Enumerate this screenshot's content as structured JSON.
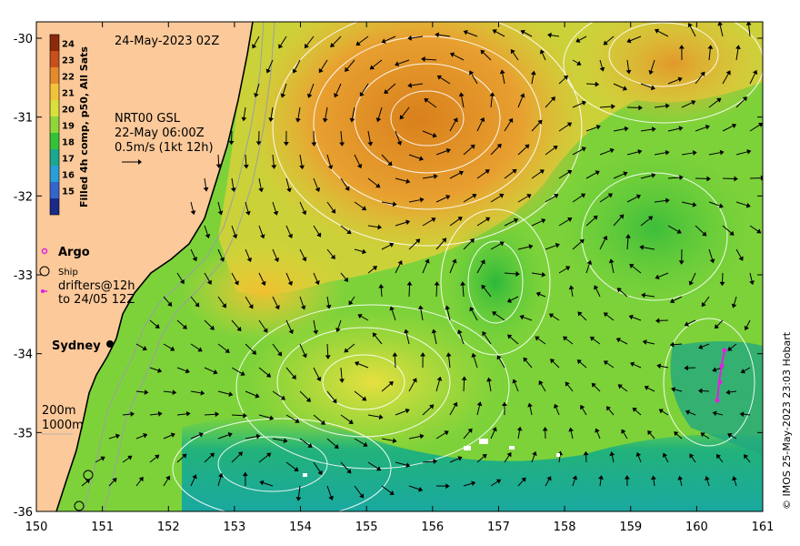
{
  "map": {
    "date_label": "24-May-2023 02Z",
    "currents_block": {
      "line1": "NRT00 GSL",
      "line2": "22-May 06:00Z",
      "line3": "0.5m/s (1kt 12h)"
    },
    "colorbar": {
      "title": "Filled 4h comp, p50, All Sats",
      "ticks": [
        "24",
        "23",
        "22",
        "21",
        "20",
        "19",
        "18",
        "17",
        "16",
        "15"
      ],
      "colors": [
        "#8b2a0a",
        "#c8501c",
        "#e48a2a",
        "#f2c23a",
        "#d8e03a",
        "#8ed63a",
        "#34c23a",
        "#1aa890",
        "#2a9ed8",
        "#3366cc",
        "#1a2a88"
      ]
    },
    "legend": {
      "argo": "Argo",
      "ship": "Ship",
      "drifters_line1": "drifters@12h",
      "drifters_line2": "to 24/05 12Z"
    },
    "place_label": "Sydney",
    "depth_labels": [
      "200m",
      "1000m"
    ],
    "credit": "© IMOS 25-May-2023 23:03 Hobart",
    "x_ticks": [
      "150",
      "151",
      "152",
      "153",
      "154",
      "155",
      "156",
      "157",
      "158",
      "159",
      "160",
      "161"
    ],
    "y_ticks": [
      "-30",
      "-31",
      "-32",
      "-33",
      "-34",
      "-35",
      "-36"
    ],
    "colors": {
      "land": "#fbc99a",
      "warm": "#e8a030",
      "mid": "#a8d83a",
      "cool": "#3cc23e",
      "cold": "#20b070",
      "drifter": "#e020e0"
    }
  }
}
